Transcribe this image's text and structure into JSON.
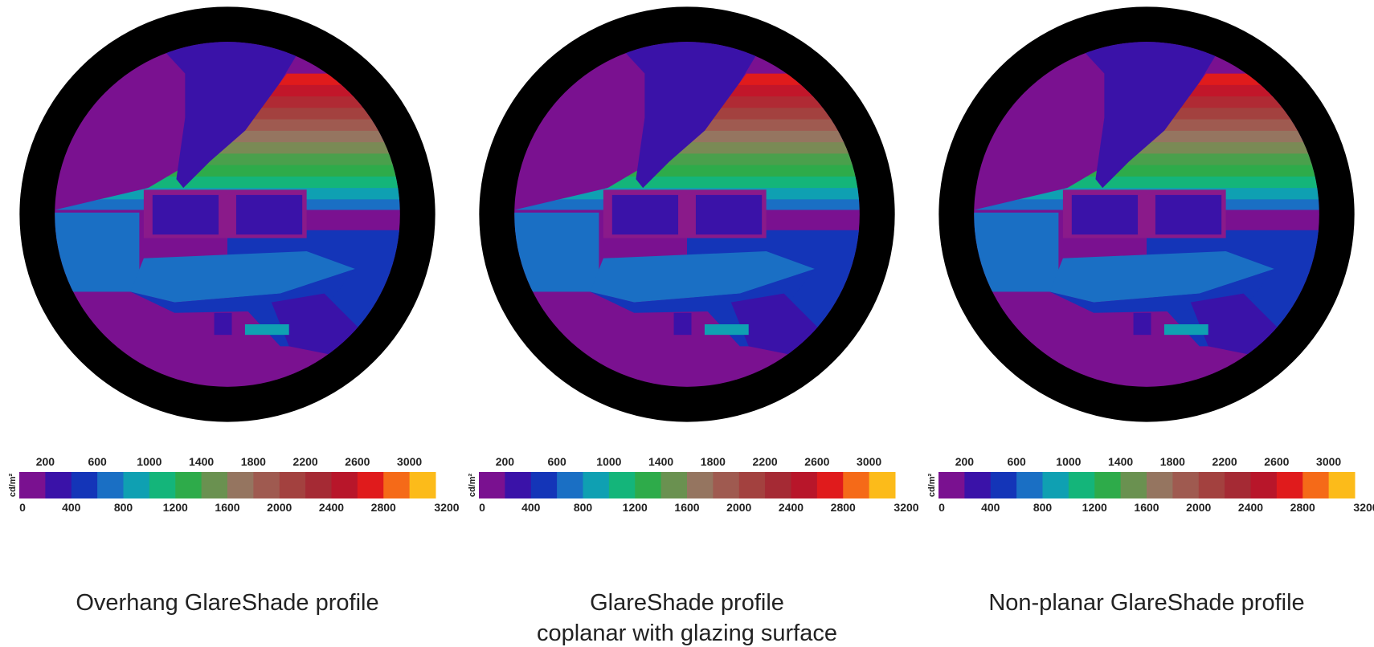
{
  "panels": [
    {
      "caption": [
        "Overhang GlareShade profile"
      ]
    },
    {
      "caption": [
        "GlareShade profile",
        "coplanar with glazing surface"
      ]
    },
    {
      "caption": [
        "Non-planar GlareShade profile"
      ]
    }
  ],
  "scale": {
    "unit": "cd/m²",
    "lim": [
      0,
      3200
    ],
    "top_ticks": [
      200,
      600,
      1000,
      1400,
      1800,
      2200,
      2600,
      3000
    ],
    "bottom_ticks": [
      0,
      400,
      800,
      1200,
      1600,
      2000,
      2400,
      2800,
      3200
    ],
    "colors": [
      "#7a1190",
      "#3a12a8",
      "#1435b8",
      "#1a6fc4",
      "#0fa0b2",
      "#14b57a",
      "#2eab4a",
      "#6a9150",
      "#957560",
      "#9f5a50",
      "#a3413f",
      "#a52a34",
      "#b8162a",
      "#e01b1c",
      "#f56a18",
      "#fcbb1a"
    ]
  }
}
